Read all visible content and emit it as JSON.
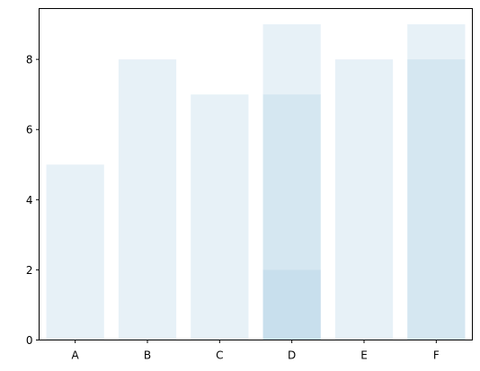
{
  "chart_data": {
    "type": "bar",
    "title": "",
    "xlabel": "",
    "ylabel": "",
    "categories": [
      "A",
      "B",
      "C",
      "D",
      "E",
      "F"
    ],
    "ylim": [
      0,
      9.45
    ],
    "yticks": [
      0,
      2,
      4,
      6,
      8
    ],
    "grid": false,
    "legend": "none",
    "bar_color": "#a9cce3",
    "bar_alpha": 0.28,
    "series": [
      {
        "values": [
          5,
          8,
          7,
          9,
          8,
          9
        ]
      },
      {
        "values": [
          0,
          0,
          0,
          7,
          0,
          8
        ]
      },
      {
        "values": [
          0,
          0,
          0,
          2,
          0,
          0
        ]
      }
    ]
  }
}
